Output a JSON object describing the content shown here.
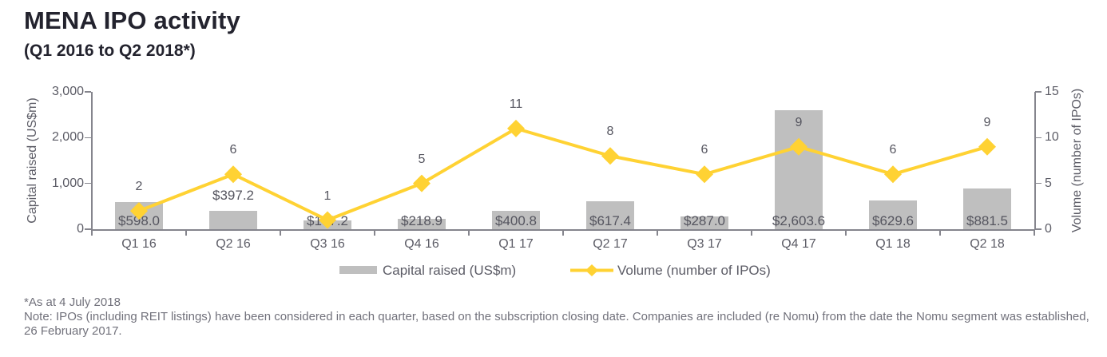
{
  "page": {
    "title": "MENA IPO activity",
    "subtitle": "(Q1 2016 to Q2 2018*)"
  },
  "chart_data": {
    "type": "bar+line combo",
    "categories": [
      "Q1 16",
      "Q2 16",
      "Q3 16",
      "Q4 16",
      "Q1 17",
      "Q2 17",
      "Q3 17",
      "Q4 17",
      "Q1 18",
      "Q2 18"
    ],
    "series": [
      {
        "name": "Capital raised (US$m)",
        "type": "bar",
        "axis": "left",
        "color": "#BFBFBF",
        "values": [
          598.0,
          397.2,
          197.2,
          218.9,
          400.8,
          617.4,
          287.0,
          2603.6,
          629.6,
          881.5
        ],
        "labels": [
          "$598.0",
          "$397.2",
          "$197.2",
          "$218.9",
          "$400.8",
          "$617.4",
          "$287.0",
          "$2,603.6",
          "$629.6",
          "$881.5"
        ]
      },
      {
        "name": "Volume (number of IPOs)",
        "type": "line",
        "axis": "right",
        "color": "#FFD233",
        "marker": "diamond",
        "values": [
          2,
          6,
          1,
          5,
          11,
          8,
          6,
          9,
          6,
          9
        ],
        "labels": [
          "2",
          "6",
          "1",
          "5",
          "11",
          "8",
          "6",
          "9",
          "6",
          "9"
        ]
      }
    ],
    "left_axis": {
      "title": "Capital raised (US$m)",
      "min": 0,
      "max": 3000,
      "ticks": [
        "0",
        "1,000",
        "2,000",
        "3,000"
      ]
    },
    "right_axis": {
      "title": "Volume (number of IPOs)",
      "min": 0,
      "max": 15,
      "ticks": [
        "0",
        "5",
        "10",
        "15"
      ]
    },
    "legend_position": "bottom",
    "grid": false
  },
  "footnotes": {
    "as_at": "*As at 4 July 2018",
    "note": "Note: IPOs (including REIT listings) have been considered in each quarter, based on the subscription closing date. Companies are included (re Nomu) from the date the Nomu segment was established, 26 February 2017."
  }
}
